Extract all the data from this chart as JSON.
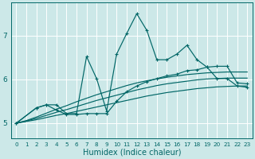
{
  "xlabel": "Humidex (Indice chaleur)",
  "bg_color": "#cce8e8",
  "grid_color": "#ffffff",
  "line_color": "#006666",
  "x_ticks": [
    0,
    1,
    2,
    3,
    4,
    5,
    6,
    7,
    8,
    9,
    10,
    11,
    12,
    13,
    14,
    15,
    16,
    17,
    18,
    19,
    20,
    21,
    22,
    23
  ],
  "ylim": [
    4.65,
    7.75
  ],
  "xlim": [
    -0.5,
    23.5
  ],
  "jagged_x": [
    0,
    2,
    3,
    4,
    5,
    6,
    7,
    8,
    9,
    10,
    11,
    12,
    13,
    14,
    15,
    16,
    17,
    18,
    19,
    20,
    21,
    22,
    23
  ],
  "jagged_y": [
    5.0,
    5.35,
    5.42,
    5.42,
    5.22,
    5.22,
    6.52,
    6.02,
    5.28,
    6.58,
    7.05,
    7.5,
    7.12,
    6.45,
    6.45,
    6.58,
    6.78,
    6.45,
    6.28,
    6.02,
    6.02,
    5.85,
    5.82
  ],
  "line2_x": [
    0,
    2,
    3,
    4,
    5,
    6,
    7,
    8,
    9,
    10,
    11,
    12,
    13,
    14,
    15,
    16,
    17,
    18,
    19,
    20,
    21,
    22,
    23
  ],
  "line2_y": [
    5.0,
    5.35,
    5.42,
    5.3,
    5.2,
    5.2,
    5.22,
    5.22,
    5.22,
    5.5,
    5.72,
    5.85,
    5.95,
    6.02,
    6.08,
    6.12,
    6.2,
    6.22,
    6.28,
    6.3,
    6.3,
    5.92,
    5.9
  ],
  "smooth1_x": [
    0,
    1,
    2,
    3,
    4,
    5,
    6,
    7,
    8,
    9,
    10,
    11,
    12,
    13,
    14,
    15,
    16,
    17,
    18,
    19,
    20,
    21,
    22,
    23
  ],
  "smooth1_y": [
    5.0,
    5.04,
    5.08,
    5.13,
    5.18,
    5.22,
    5.27,
    5.32,
    5.37,
    5.42,
    5.47,
    5.52,
    5.57,
    5.62,
    5.66,
    5.7,
    5.73,
    5.76,
    5.79,
    5.81,
    5.83,
    5.84,
    5.85,
    5.85
  ],
  "smooth2_x": [
    0,
    1,
    2,
    3,
    4,
    5,
    6,
    7,
    8,
    9,
    10,
    11,
    12,
    13,
    14,
    15,
    16,
    17,
    18,
    19,
    20,
    21,
    22,
    23
  ],
  "smooth2_y": [
    5.0,
    5.05,
    5.11,
    5.18,
    5.25,
    5.31,
    5.38,
    5.45,
    5.52,
    5.58,
    5.64,
    5.7,
    5.76,
    5.81,
    5.86,
    5.9,
    5.93,
    5.96,
    5.99,
    6.01,
    6.02,
    6.03,
    6.03,
    6.03
  ],
  "smooth3_x": [
    0,
    1,
    2,
    3,
    4,
    5,
    6,
    7,
    8,
    9,
    10,
    11,
    12,
    13,
    14,
    15,
    16,
    17,
    18,
    19,
    20,
    21,
    22,
    23
  ],
  "smooth3_y": [
    5.0,
    5.06,
    5.14,
    5.23,
    5.32,
    5.4,
    5.49,
    5.57,
    5.65,
    5.72,
    5.79,
    5.86,
    5.92,
    5.97,
    6.01,
    6.05,
    6.08,
    6.11,
    6.13,
    6.15,
    6.16,
    6.17,
    6.17,
    6.17
  ],
  "yticks": [
    5,
    6,
    7
  ],
  "xlabel_color": "#006666",
  "xlabel_fontsize": 7
}
